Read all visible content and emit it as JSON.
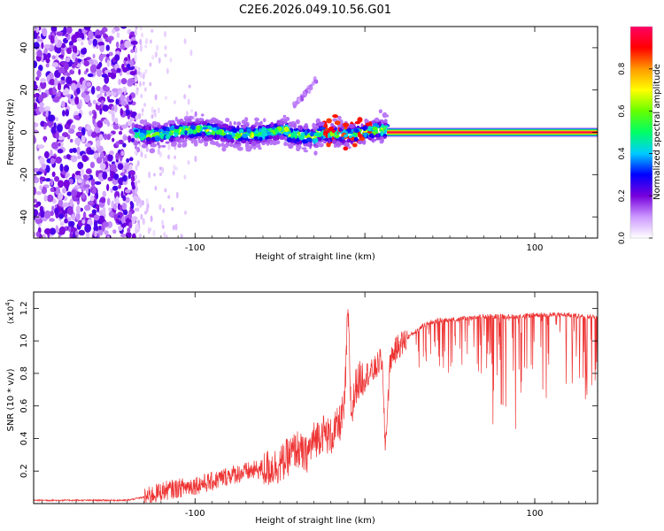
{
  "title": "C2E6.2026.049.10.56.G01",
  "chart_data": [
    {
      "type": "heatmap",
      "xlabel": "Height of straight line (km)",
      "ylabel": "Frequency (Hz)",
      "xlim": [
        -195,
        137
      ],
      "ylim": [
        -50,
        50
      ],
      "xticks": [
        -100,
        0,
        100
      ],
      "xtick_labels": [
        "-100",
        "",
        "100"
      ],
      "yticks": [
        -40,
        -20,
        0,
        20,
        40
      ],
      "ytick_labels": [
        "-40",
        "-20",
        "0",
        "20",
        "40"
      ],
      "grid": false,
      "colorbar": {
        "label": "Normalized spectral amplitude",
        "range": [
          0,
          1
        ],
        "ticks": [
          0.0,
          0.2,
          0.4,
          0.6,
          0.8
        ],
        "tick_labels": [
          "0.0",
          "0.2",
          "0.4",
          "0.6",
          "0.8"
        ],
        "colormap": [
          "#ffffff",
          "#cc99ff",
          "#7700dd",
          "#0000ff",
          "#00ccff",
          "#00ff66",
          "#66ff00",
          "#ffff00",
          "#ff9900",
          "#ff0000",
          "#ff0066"
        ]
      },
      "regions": [
        {
          "name": "broadband noise",
          "x_range": [
            -195,
            -135
          ],
          "freq_range": [
            -50,
            50
          ],
          "amplitude": 0.1
        },
        {
          "name": "noisy carrier",
          "x_range": [
            -135,
            13
          ],
          "freq_center": 0,
          "freq_spread": 8,
          "amplitude": 0.35
        },
        {
          "name": "side feature",
          "x_range": [
            -42,
            -28
          ],
          "freq_range": [
            12,
            25
          ],
          "amplitude": 0.1
        },
        {
          "name": "clean carrier",
          "x_range": [
            13,
            137
          ],
          "freq_center": 0,
          "freq_spread": 1.5,
          "amplitude": 0.97
        }
      ]
    },
    {
      "type": "line",
      "xlabel": "Height of straight line (km)",
      "ylabel": "SNR (10 * v/v)",
      "yscale_label": "(x10",
      "yscale_exponent": "4",
      "xlim": [
        -195,
        137
      ],
      "ylim": [
        0,
        1.3
      ],
      "xticks": [
        -100,
        0,
        100
      ],
      "xtick_labels": [
        "-100",
        "",
        "100"
      ],
      "yticks": [
        0.2,
        0.4,
        0.6,
        0.8,
        1.0,
        1.2
      ],
      "ytick_labels": [
        "0.2",
        "0.4",
        "0.6",
        "0.8",
        "1.0",
        "1.2"
      ],
      "grid": false,
      "color": "#ee3333",
      "series": [
        {
          "name": "SNR",
          "x": [
            -195,
            -180,
            -160,
            -140,
            -130,
            -120,
            -110,
            -100,
            -90,
            -80,
            -70,
            -60,
            -50,
            -40,
            -35,
            -30,
            -25,
            -20,
            -15,
            -12,
            -10,
            -8,
            -5,
            0,
            5,
            10,
            12,
            15,
            20,
            25,
            30,
            35,
            40,
            50,
            60,
            70,
            80,
            90,
            100,
            110,
            120,
            130,
            137
          ],
          "values": [
            0.02,
            0.02,
            0.02,
            0.02,
            0.04,
            0.08,
            0.1,
            0.12,
            0.14,
            0.18,
            0.2,
            0.22,
            0.25,
            0.35,
            0.3,
            0.4,
            0.45,
            0.42,
            0.5,
            0.6,
            1.2,
            0.55,
            0.75,
            0.8,
            0.82,
            0.9,
            0.35,
            0.9,
            0.98,
            1.02,
            1.06,
            1.1,
            1.12,
            1.13,
            1.14,
            1.15,
            1.15,
            1.15,
            1.16,
            1.16,
            1.16,
            1.15,
            1.15
          ]
        }
      ],
      "dropout_regions": [
        {
          "x_range": [
            30,
            75
          ],
          "min_value": 0.8
        },
        {
          "x_range": [
            75,
            95
          ],
          "min_value": 0.45
        },
        {
          "x_range": [
            95,
            137
          ],
          "min_value": 0.6
        }
      ]
    }
  ]
}
